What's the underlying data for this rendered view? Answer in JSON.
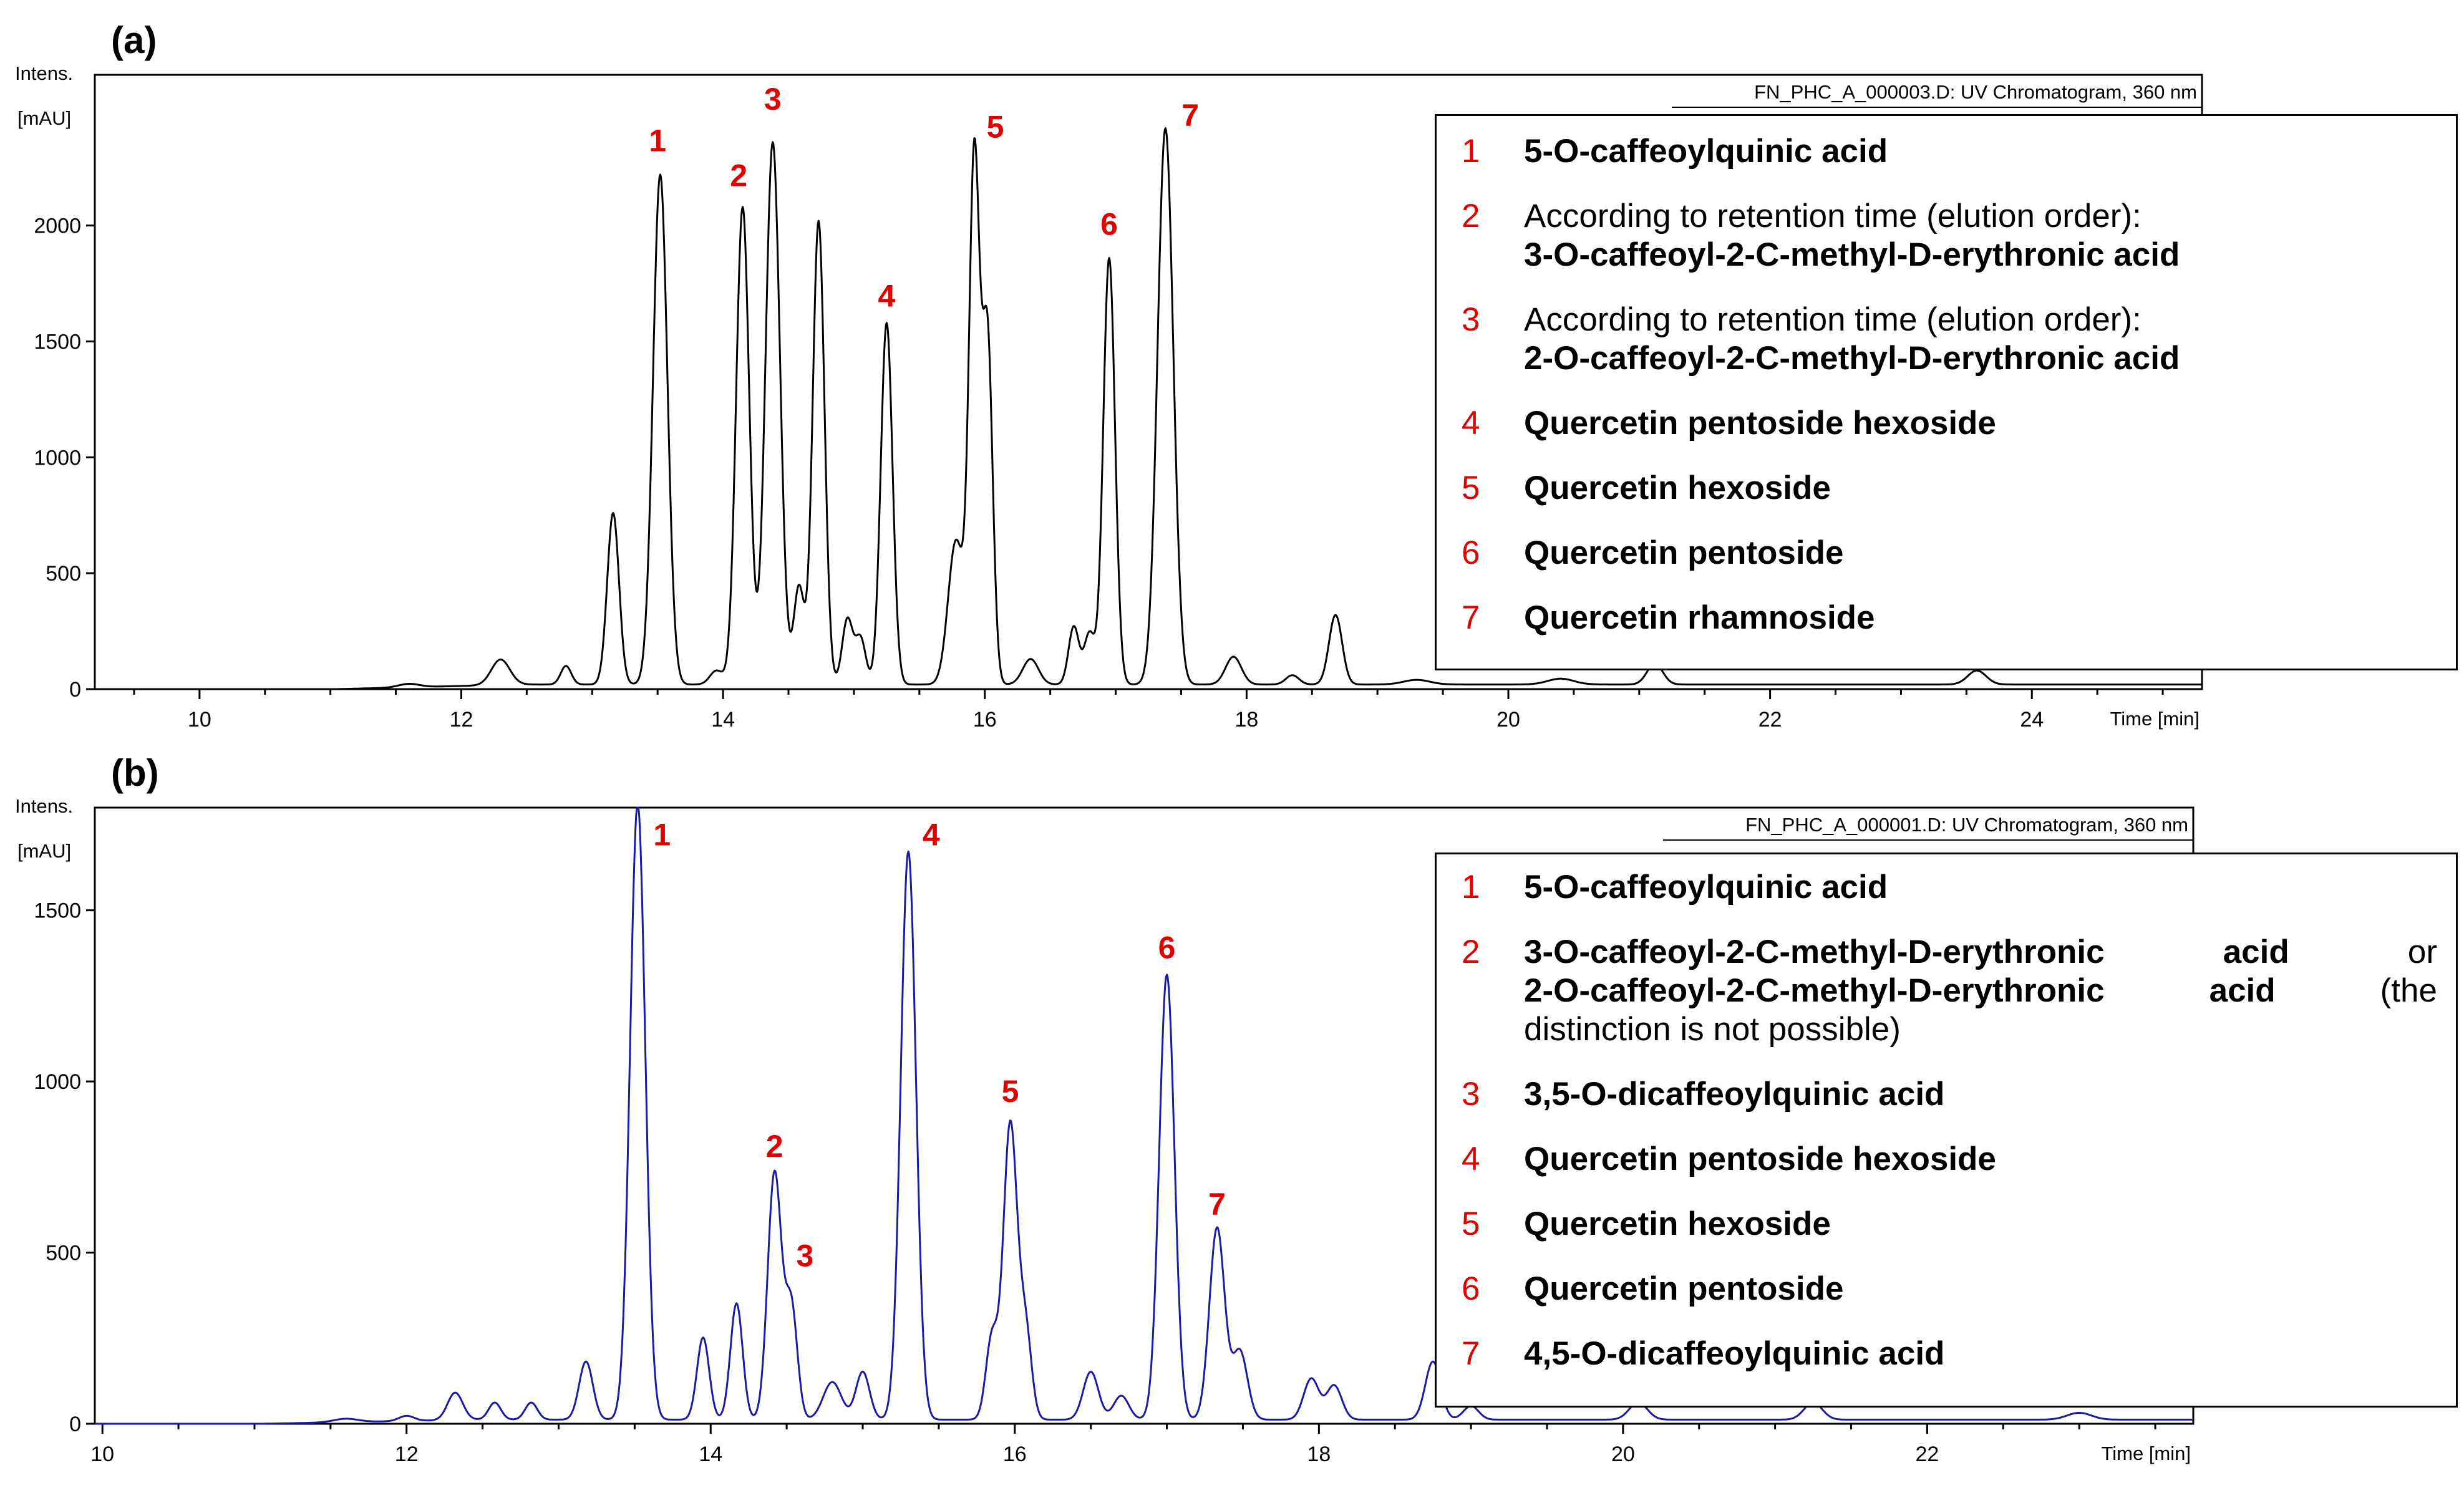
{
  "panels": [
    {
      "letter": "(a)"
    },
    {
      "letter": "(b)"
    }
  ],
  "legend_a": {
    "items": [
      {
        "num": "1",
        "name": "5-O-caffeoylquinic acid"
      },
      {
        "num": "2",
        "note": "According to retention time (elution order):",
        "name": "3-O-caffeoyl-2-C-methyl-D-erythronic acid"
      },
      {
        "num": "3",
        "note": "According to retention time (elution order):",
        "name": "2-O-caffeoyl-2-C-methyl-D-erythronic acid"
      },
      {
        "num": "4",
        "name": "Quercetin pentoside hexoside"
      },
      {
        "num": "5",
        "name": "Quercetin hexoside"
      },
      {
        "num": "6",
        "name": "Quercetin pentoside"
      },
      {
        "num": "7",
        "name": "Quercetin rhamnoside"
      }
    ]
  },
  "legend_b": {
    "item1": {
      "num": "1",
      "name": "5-O-caffeoylquinic acid"
    },
    "item2": {
      "num": "2",
      "line1_name": "3-O-caffeoyl-2-C-methyl-D-erythronic",
      "line1_acid": "acid",
      "line1_or": "or",
      "line2_name": "2-O-caffeoyl-2-C-methyl-D-erythronic",
      "line2_acid": "acid",
      "line2_the": "(the",
      "line3": "distinction is not possible)"
    },
    "rest": [
      {
        "num": "3",
        "name": "3,5-O-dicaffeoylquinic acid"
      },
      {
        "num": "4",
        "name": "Quercetin pentoside hexoside"
      },
      {
        "num": "5",
        "name": "Quercetin hexoside"
      },
      {
        "num": "6",
        "name": "Quercetin pentoside"
      },
      {
        "num": "7",
        "name": "4,5-O-dicaffeoylquinic acid"
      }
    ]
  },
  "chart_data": [
    {
      "type": "line",
      "title": "FN_PHC_A_000003.D: UV Chromatogram, 360 nm",
      "ylabel_line1": "Intens.",
      "ylabel_line2": "[mAU]",
      "xlabel": "Time [min]",
      "xlim": [
        9.2,
        25.3
      ],
      "ylim": [
        0,
        2650
      ],
      "xticks": [
        10,
        12,
        14,
        16,
        18,
        20,
        22,
        24
      ],
      "yticks": [
        0,
        500,
        1000,
        1500,
        2000
      ],
      "line_color": "#000000",
      "baseline": 20,
      "peaks": [
        {
          "x": 11.6,
          "y": 15,
          "w": 0.08
        },
        {
          "x": 12.3,
          "y": 110,
          "w": 0.07
        },
        {
          "x": 12.8,
          "y": 80,
          "w": 0.04
        },
        {
          "x": 13.16,
          "y": 740,
          "w": 0.045
        },
        {
          "x": 13.52,
          "y": 2200,
          "w": 0.055
        },
        {
          "x": 13.95,
          "y": 60,
          "w": 0.05
        },
        {
          "x": 14.15,
          "y": 2060,
          "w": 0.05
        },
        {
          "x": 14.38,
          "y": 2340,
          "w": 0.055
        },
        {
          "x": 14.58,
          "y": 420,
          "w": 0.04
        },
        {
          "x": 14.73,
          "y": 2000,
          "w": 0.045
        },
        {
          "x": 14.95,
          "y": 280,
          "w": 0.04
        },
        {
          "x": 15.05,
          "y": 200,
          "w": 0.04
        },
        {
          "x": 15.25,
          "y": 1560,
          "w": 0.045
        },
        {
          "x": 15.78,
          "y": 620,
          "w": 0.06
        },
        {
          "x": 15.92,
          "y": 2250,
          "w": 0.04
        },
        {
          "x": 16.02,
          "y": 1500,
          "w": 0.04
        },
        {
          "x": 16.35,
          "y": 110,
          "w": 0.06
        },
        {
          "x": 16.68,
          "y": 250,
          "w": 0.04
        },
        {
          "x": 16.8,
          "y": 220,
          "w": 0.04
        },
        {
          "x": 16.95,
          "y": 1840,
          "w": 0.045
        },
        {
          "x": 17.38,
          "y": 2400,
          "w": 0.06
        },
        {
          "x": 17.9,
          "y": 120,
          "w": 0.06
        },
        {
          "x": 18.35,
          "y": 40,
          "w": 0.05
        },
        {
          "x": 18.68,
          "y": 300,
          "w": 0.05
        },
        {
          "x": 19.3,
          "y": 20,
          "w": 0.1
        },
        {
          "x": 20.4,
          "y": 25,
          "w": 0.1
        },
        {
          "x": 21.12,
          "y": 90,
          "w": 0.06
        },
        {
          "x": 23.58,
          "y": 60,
          "w": 0.07
        }
      ],
      "peak_labels": [
        {
          "text": "1",
          "x": 13.5,
          "y": 2320
        },
        {
          "text": "2",
          "x": 14.12,
          "y": 2170
        },
        {
          "text": "3",
          "x": 14.38,
          "y": 2500
        },
        {
          "text": "4",
          "x": 15.25,
          "y": 1650
        },
        {
          "text": "5",
          "x": 16.08,
          "y": 2380
        },
        {
          "text": "6",
          "x": 16.95,
          "y": 1960
        },
        {
          "text": "7",
          "x": 17.57,
          "y": 2430
        }
      ]
    },
    {
      "type": "line",
      "title": "FN_PHC_A_000001.D: UV Chromatogram, 360 nm",
      "ylabel_line1": "Intens.",
      "ylabel_line2": "[mAU]",
      "xlabel": "Time [min]",
      "xlim": [
        9.95,
        23.75
      ],
      "ylim": [
        0,
        1800
      ],
      "xticks": [
        10,
        12,
        14,
        16,
        18,
        20,
        22
      ],
      "yticks": [
        0,
        500,
        1000,
        1500
      ],
      "line_color": "#1a1aa6",
      "baseline": 12,
      "peaks": [
        {
          "x": 11.6,
          "y": 10,
          "w": 0.08
        },
        {
          "x": 12.0,
          "y": 15,
          "w": 0.05
        },
        {
          "x": 12.32,
          "y": 80,
          "w": 0.05
        },
        {
          "x": 12.58,
          "y": 50,
          "w": 0.04
        },
        {
          "x": 12.82,
          "y": 50,
          "w": 0.04
        },
        {
          "x": 13.18,
          "y": 170,
          "w": 0.045
        },
        {
          "x": 13.52,
          "y": 1800,
          "w": 0.05
        },
        {
          "x": 13.95,
          "y": 240,
          "w": 0.04
        },
        {
          "x": 14.17,
          "y": 340,
          "w": 0.04
        },
        {
          "x": 14.42,
          "y": 720,
          "w": 0.045
        },
        {
          "x": 14.53,
          "y": 330,
          "w": 0.04
        },
        {
          "x": 14.8,
          "y": 110,
          "w": 0.06
        },
        {
          "x": 15.0,
          "y": 140,
          "w": 0.045
        },
        {
          "x": 15.3,
          "y": 1660,
          "w": 0.05
        },
        {
          "x": 15.85,
          "y": 240,
          "w": 0.04
        },
        {
          "x": 15.97,
          "y": 860,
          "w": 0.045
        },
        {
          "x": 16.07,
          "y": 260,
          "w": 0.04
        },
        {
          "x": 16.5,
          "y": 140,
          "w": 0.05
        },
        {
          "x": 16.7,
          "y": 70,
          "w": 0.05
        },
        {
          "x": 17.0,
          "y": 1300,
          "w": 0.05
        },
        {
          "x": 17.33,
          "y": 560,
          "w": 0.05
        },
        {
          "x": 17.48,
          "y": 200,
          "w": 0.05
        },
        {
          "x": 17.95,
          "y": 120,
          "w": 0.05
        },
        {
          "x": 18.1,
          "y": 100,
          "w": 0.05
        },
        {
          "x": 18.75,
          "y": 170,
          "w": 0.05
        },
        {
          "x": 19.0,
          "y": 40,
          "w": 0.05
        },
        {
          "x": 20.1,
          "y": 50,
          "w": 0.06
        },
        {
          "x": 21.25,
          "y": 50,
          "w": 0.06
        },
        {
          "x": 23.0,
          "y": 20,
          "w": 0.08
        }
      ],
      "peak_labels": [
        {
          "text": "1",
          "x": 13.68,
          "y": 1690
        },
        {
          "text": "2",
          "x": 14.42,
          "y": 780
        },
        {
          "text": "3",
          "x": 14.62,
          "y": 460
        },
        {
          "text": "4",
          "x": 15.45,
          "y": 1690
        },
        {
          "text": "5",
          "x": 15.97,
          "y": 940
        },
        {
          "text": "6",
          "x": 17.0,
          "y": 1360
        },
        {
          "text": "7",
          "x": 17.33,
          "y": 610
        }
      ]
    }
  ]
}
